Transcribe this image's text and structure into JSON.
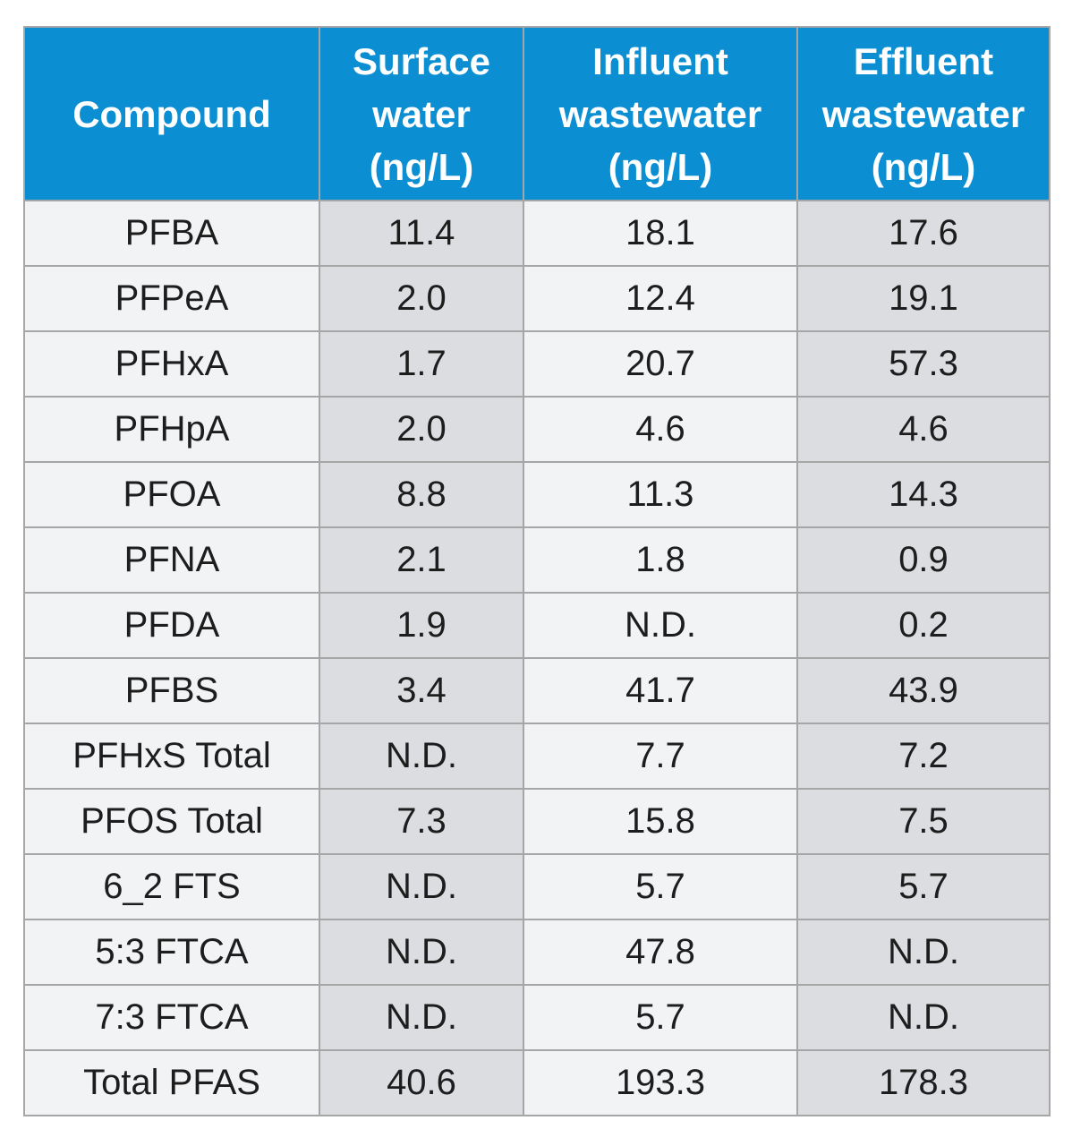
{
  "table": {
    "headers": [
      {
        "lines": [
          "Compound"
        ]
      },
      {
        "lines": [
          "Surface",
          "water",
          "(ng/L)"
        ]
      },
      {
        "lines": [
          "Influent",
          "wastewater",
          "(ng/L)"
        ]
      },
      {
        "lines": [
          "Effluent",
          "wastewater",
          "(ng/L)"
        ]
      }
    ],
    "rows": [
      [
        "PFBA",
        "11.4",
        "18.1",
        "17.6"
      ],
      [
        "PFPeA",
        "2.0",
        "12.4",
        "19.1"
      ],
      [
        "PFHxA",
        "1.7",
        "20.7",
        "57.3"
      ],
      [
        "PFHpA",
        "2.0",
        "4.6",
        "4.6"
      ],
      [
        "PFOA",
        "8.8",
        "11.3",
        "14.3"
      ],
      [
        "PFNA",
        "2.1",
        "1.8",
        "0.9"
      ],
      [
        "PFDA",
        "1.9",
        "N.D.",
        "0.2"
      ],
      [
        "PFBS",
        "3.4",
        "41.7",
        "43.9"
      ],
      [
        "PFHxS Total",
        "N.D.",
        "7.7",
        "7.2"
      ],
      [
        "PFOS Total",
        "7.3",
        "15.8",
        "7.5"
      ],
      [
        "6_2 FTS",
        "N.D.",
        "5.7",
        "5.7"
      ],
      [
        "5:3 FTCA",
        "N.D.",
        "47.8",
        "N.D."
      ],
      [
        "7:3 FTCA",
        "N.D.",
        "5.7",
        "N.D."
      ],
      [
        "Total PFAS",
        "40.6",
        "193.3",
        "178.3"
      ]
    ]
  },
  "colors": {
    "header_bg": "#0b8ed2",
    "header_text": "#ffffff",
    "cell_light": "#f2f3f5",
    "cell_dark": "#dcdde1",
    "border": "#a6a6a6"
  }
}
